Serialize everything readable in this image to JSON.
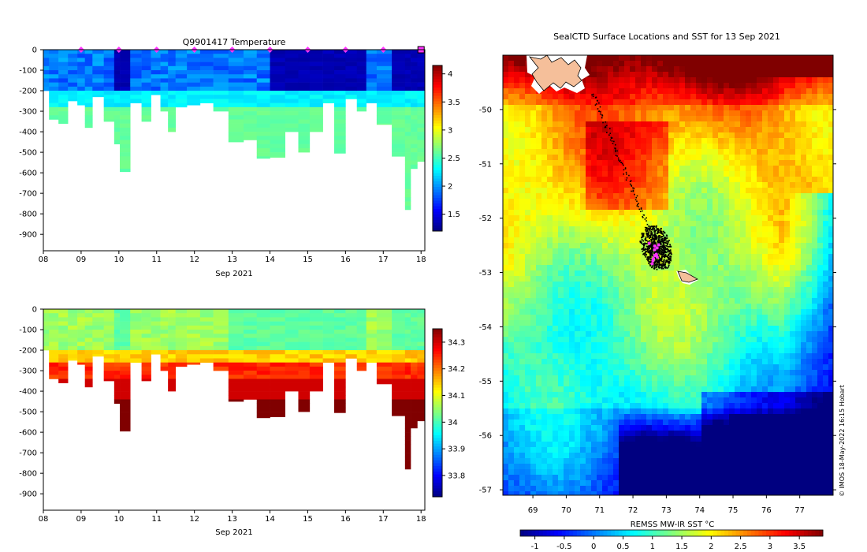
{
  "chart_data": [
    {
      "type": "heatmap",
      "panel": "temperature-section",
      "title": "Q9901417  Temperature",
      "xlabel": "Sep 2021",
      "ylabel": "",
      "x_ticks": [
        "08",
        "09",
        "10",
        "11",
        "12",
        "13",
        "14",
        "15",
        "16",
        "17",
        "18"
      ],
      "x_range_days": [
        8,
        18.1
      ],
      "y_ticks": [
        "0",
        "-100",
        "-200",
        "-300",
        "-400",
        "-500",
        "-600",
        "-700",
        "-800",
        "-900"
      ],
      "y_range_m": [
        0,
        -980
      ],
      "colorbar_ticks": [
        "1.5",
        "2",
        "2.5",
        "3",
        "3.5",
        "4"
      ],
      "colorbar_range": [
        1.2,
        4.15
      ],
      "marker_days": [
        9,
        10,
        11,
        12,
        13,
        14,
        15,
        16,
        17
      ],
      "profile_bottom_depths_m": [
        {
          "day": 8.0,
          "depth": 200
        },
        {
          "day": 8.3,
          "depth": 340
        },
        {
          "day": 8.5,
          "depth": 360
        },
        {
          "day": 8.8,
          "depth": 250
        },
        {
          "day": 9.0,
          "depth": 270
        },
        {
          "day": 9.2,
          "depth": 380
        },
        {
          "day": 9.4,
          "depth": 230
        },
        {
          "day": 9.8,
          "depth": 350
        },
        {
          "day": 9.95,
          "depth": 460
        },
        {
          "day": 10.1,
          "depth": 595
        },
        {
          "day": 10.5,
          "depth": 260
        },
        {
          "day": 10.7,
          "depth": 350
        },
        {
          "day": 11.0,
          "depth": 220
        },
        {
          "day": 11.2,
          "depth": 300
        },
        {
          "day": 11.4,
          "depth": 400
        },
        {
          "day": 11.6,
          "depth": 280
        },
        {
          "day": 12.0,
          "depth": 270
        },
        {
          "day": 12.3,
          "depth": 260
        },
        {
          "day": 12.7,
          "depth": 300
        },
        {
          "day": 13.1,
          "depth": 450
        },
        {
          "day": 13.5,
          "depth": 440
        },
        {
          "day": 13.8,
          "depth": 530
        },
        {
          "day": 14.2,
          "depth": 525
        },
        {
          "day": 14.6,
          "depth": 400
        },
        {
          "day": 14.9,
          "depth": 500
        },
        {
          "day": 15.2,
          "depth": 400
        },
        {
          "day": 15.6,
          "depth": 260
        },
        {
          "day": 15.8,
          "depth": 505
        },
        {
          "day": 16.2,
          "depth": 240
        },
        {
          "day": 16.4,
          "depth": 300
        },
        {
          "day": 16.7,
          "depth": 260
        },
        {
          "day": 16.95,
          "depth": 365
        },
        {
          "day": 17.5,
          "depth": 520
        },
        {
          "day": 17.65,
          "depth": 780
        },
        {
          "day": 17.8,
          "depth": 580
        },
        {
          "day": 18.0,
          "depth": 545
        }
      ]
    },
    {
      "type": "heatmap",
      "panel": "salinity-section",
      "title": "",
      "xlabel": "Sep 2021",
      "x_ticks": [
        "08",
        "09",
        "10",
        "11",
        "12",
        "13",
        "14",
        "15",
        "16",
        "17",
        "18"
      ],
      "y_ticks": [
        "0",
        "-100",
        "-200",
        "-300",
        "-400",
        "-500",
        "-600",
        "-700",
        "-800",
        "-900"
      ],
      "colorbar_ticks": [
        "33.8",
        "33.9",
        "34",
        "34.1",
        "34.2",
        "34.3"
      ],
      "colorbar_range": [
        33.72,
        34.35
      ]
    },
    {
      "type": "heatmap",
      "panel": "sst-map",
      "title": "SealCTD Surface Locations and SST for 13 Sep 2021",
      "lon_ticks": [
        "69",
        "70",
        "71",
        "72",
        "73",
        "74",
        "75",
        "76",
        "77"
      ],
      "lon_range": [
        68.1,
        78.0
      ],
      "lat_ticks": [
        "-50",
        "-51",
        "-52",
        "-53",
        "-54",
        "-55",
        "-56",
        "-57"
      ],
      "lat_range": [
        -49.0,
        -57.1
      ],
      "colorbar_label": "REMSS MW-IR SST °C",
      "colorbar_ticks": [
        "-1",
        "-0.5",
        "0",
        "0.5",
        "1",
        "1.5",
        "2",
        "2.5",
        "3",
        "3.5"
      ],
      "colorbar_range": [
        -1.25,
        3.9
      ],
      "seal_track": {
        "start_lon": 70.8,
        "start_lat": -49.7,
        "cluster_lon": 72.7,
        "cluster_lat": -52.55
      }
    }
  ],
  "watermark": "© IMOS 18-May-2022 16:15 Hobart"
}
